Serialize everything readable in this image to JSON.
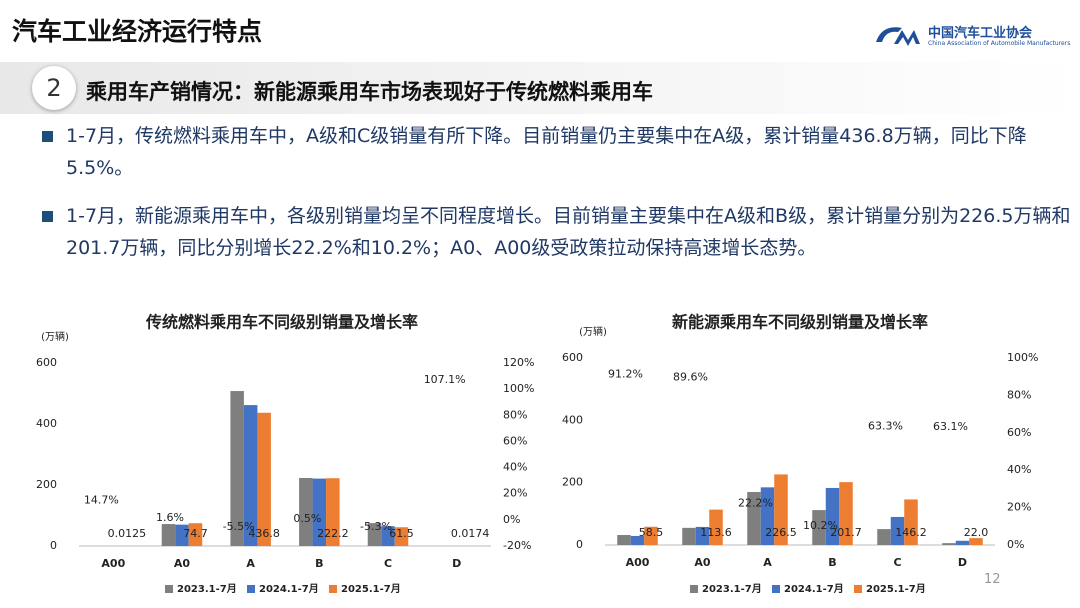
{
  "header": {
    "title": "汽车工业经济运行特点",
    "org_name": "中国汽车工业协会",
    "org_name_en": "China Association of Automobile Manufacturers"
  },
  "section": {
    "number": "2",
    "title": "乘用车产销情况：新能源乘用车市场表现好于传统燃料乘用车"
  },
  "bullets": [
    "1-7月，传统燃料乘用车中，A级和C级销量有所下降。目前销量仍主要集中在A级，累计销量436.8万辆，同比下降5.5%。",
    "1-7月，新能源乘用车中，各级别销量均呈不同程度增长。目前销量主要集中在A级和B级，累计销量分别为226.5万辆和201.7万辆，同比分别增长22.2%和10.2%；A0、A00级受政策拉动保持高速增长态势。"
  ],
  "page_number": "12",
  "chart_data": [
    {
      "type": "bar",
      "title": "传统燃料乘用车不同级别销量及增长率",
      "y_label": "(万辆)",
      "categories": [
        "A00",
        "A0",
        "A",
        "B",
        "C",
        "D"
      ],
      "series": [
        {
          "name": "2023.1-7月",
          "color": "#7f7f7f",
          "values": [
            0.01,
            72,
            508,
            223,
            75,
            0.01
          ]
        },
        {
          "name": "2024.1-7月",
          "color": "#4472c4",
          "values": [
            0.011,
            70,
            462,
            221,
            65,
            0.0084
          ]
        },
        {
          "name": "2025.1-7月",
          "color": "#ed7d31",
          "values": [
            0.0125,
            74.7,
            436.8,
            222.2,
            61.5,
            0.0174
          ],
          "value_labels": [
            "0.0125",
            "74.7",
            "436.8",
            "222.2",
            "61.5",
            "0.0174"
          ]
        }
      ],
      "growth": {
        "axis": "y2",
        "values": [
          14.7,
          1.6,
          -5.5,
          0.5,
          -5.3,
          107.1
        ],
        "value_labels": [
          "14.7%",
          "1.6%",
          "-5.5%",
          "0.5%",
          "-5.3%",
          "107.1%"
        ],
        "color": "#222222",
        "negative_color": "#e00000"
      },
      "ylim": [
        0,
        600
      ],
      "yticks": [
        0,
        200,
        400,
        600
      ],
      "y2lim": [
        -20,
        120
      ],
      "y2ticks": [
        {
          "value": -20,
          "label": "-20%"
        },
        {
          "value": 0,
          "label": "0%"
        },
        {
          "value": 20,
          "label": "20%"
        },
        {
          "value": 40,
          "label": "40%"
        },
        {
          "value": 60,
          "label": "60%"
        },
        {
          "value": 80,
          "label": "80%"
        },
        {
          "value": 100,
          "label": "100%"
        },
        {
          "value": 120,
          "label": "120%"
        }
      ],
      "grid": false,
      "legend": "bottom"
    },
    {
      "type": "bar",
      "title": "新能源乘用车不同级别销量及增长率",
      "y_label": "(万辆)",
      "categories": [
        "A00",
        "A0",
        "A",
        "B",
        "C",
        "D"
      ],
      "series": [
        {
          "name": "2023.1-7月",
          "color": "#7f7f7f",
          "values": [
            32,
            55,
            170,
            112,
            51,
            6
          ]
        },
        {
          "name": "2024.1-7月",
          "color": "#4472c4",
          "values": [
            29,
            58,
            185,
            183,
            90,
            13.5
          ]
        },
        {
          "name": "2025.1-7月",
          "color": "#ed7d31",
          "values": [
            58.5,
            113.6,
            226.5,
            201.7,
            146.2,
            22.0
          ],
          "value_labels": [
            "58.5",
            "113.6",
            "226.5",
            "201.7",
            "146.2",
            "22.0"
          ]
        }
      ],
      "growth": {
        "axis": "y2",
        "values": [
          91.2,
          89.6,
          22.2,
          10.2,
          63.3,
          63.1
        ],
        "value_labels": [
          "91.2%",
          "89.6%",
          "22.2%",
          "10.2%",
          "63.3%",
          "63.1%"
        ],
        "color": "#222222",
        "negative_color": "#e00000"
      },
      "ylim": [
        0,
        600
      ],
      "yticks": [
        0,
        200,
        400,
        600
      ],
      "y2lim": [
        0,
        100
      ],
      "y2ticks": [
        {
          "value": 0,
          "label": "0%"
        },
        {
          "value": 20,
          "label": "20%"
        },
        {
          "value": 40,
          "label": "40%"
        },
        {
          "value": 60,
          "label": "60%"
        },
        {
          "value": 80,
          "label": "80%"
        },
        {
          "value": 100,
          "label": "100%"
        }
      ],
      "grid": false,
      "legend": "bottom"
    }
  ]
}
